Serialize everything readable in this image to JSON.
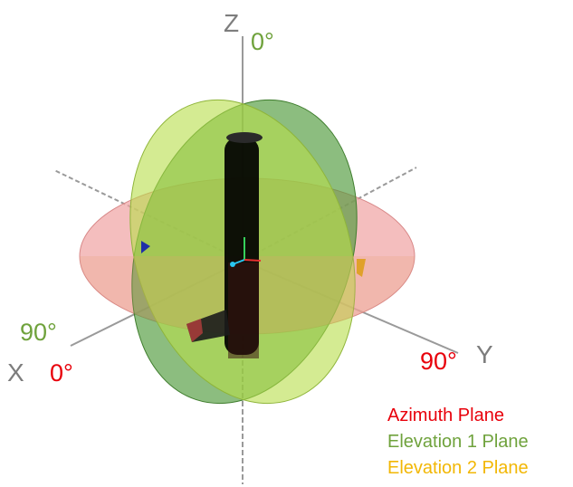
{
  "axes": {
    "z_label": "Z",
    "x_label": "X",
    "y_label": "Y"
  },
  "angles": {
    "elevation_zero": "0°",
    "elevation_ninety": "90°",
    "azimuth_zero": "0°",
    "azimuth_ninety": "90°"
  },
  "legend": [
    {
      "label": "Azimuth Plane",
      "color": "#e8000b"
    },
    {
      "label": "Elevation 1 Plane",
      "color": "#6fa23c"
    },
    {
      "label": "Elevation 2 Plane",
      "color": "#f2b705"
    }
  ],
  "colors": {
    "azimuth_fill": "#f0a3a3",
    "elevation1_fill": "#4f9a3a",
    "elevation2_fill": "#b8dd4a",
    "axis_line": "#9a9a9a",
    "axis_text": "#7d7d7d",
    "device_body": "#000000",
    "marker_blue": "#1f2fa8",
    "marker_orange": "#e0a12a"
  }
}
